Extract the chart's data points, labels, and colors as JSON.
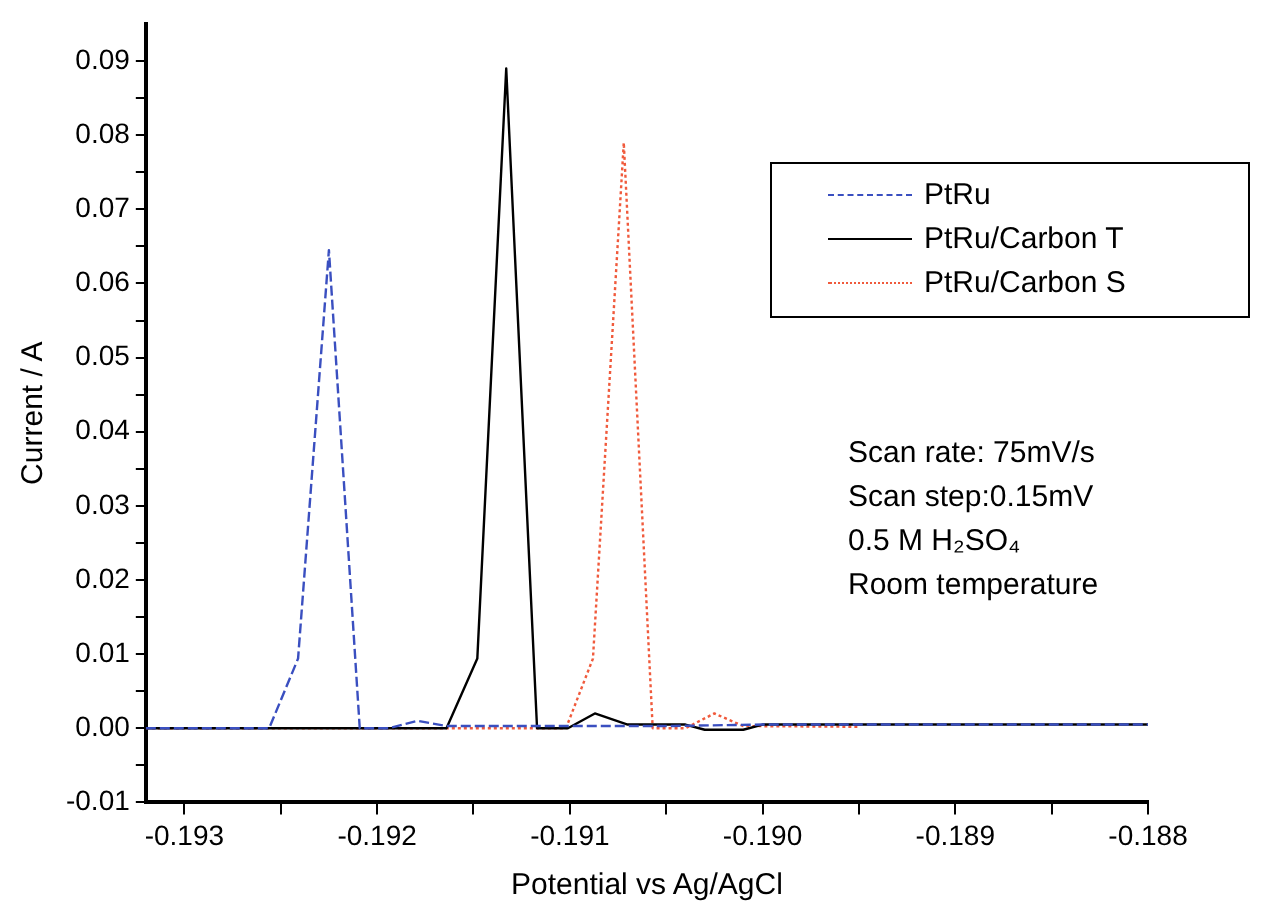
{
  "chart_data": {
    "type": "line",
    "xlabel": "Potential vs Ag/AgCl",
    "ylabel": "Current / A",
    "xlim": [
      -0.1932,
      -0.188
    ],
    "ylim": [
      -0.01,
      0.095
    ],
    "xticks": [
      {
        "value": -0.193,
        "label": "-0.193"
      },
      {
        "value": -0.1925,
        "label": null
      },
      {
        "value": -0.192,
        "label": "-0.192"
      },
      {
        "value": -0.1915,
        "label": null
      },
      {
        "value": -0.191,
        "label": "-0.191"
      },
      {
        "value": -0.1905,
        "label": null
      },
      {
        "value": -0.19,
        "label": "-0.190"
      },
      {
        "value": -0.1895,
        "label": null
      },
      {
        "value": -0.189,
        "label": "-0.189"
      },
      {
        "value": -0.1885,
        "label": null
      },
      {
        "value": -0.188,
        "label": "-0.188"
      }
    ],
    "yticks": [
      {
        "value": -0.01,
        "label": "-0.01"
      },
      {
        "value": -0.005,
        "label": null
      },
      {
        "value": 0,
        "label": "0.00"
      },
      {
        "value": 0.005,
        "label": null
      },
      {
        "value": 0.01,
        "label": "0.01"
      },
      {
        "value": 0.015,
        "label": null
      },
      {
        "value": 0.02,
        "label": "0.02"
      },
      {
        "value": 0.025,
        "label": null
      },
      {
        "value": 0.03,
        "label": "0.03"
      },
      {
        "value": 0.035,
        "label": null
      },
      {
        "value": 0.04,
        "label": "0.04"
      },
      {
        "value": 0.045,
        "label": null
      },
      {
        "value": 0.05,
        "label": "0.05"
      },
      {
        "value": 0.055,
        "label": null
      },
      {
        "value": 0.06,
        "label": "0.06"
      },
      {
        "value": 0.065,
        "label": null
      },
      {
        "value": 0.07,
        "label": "0.07"
      },
      {
        "value": 0.075,
        "label": null
      },
      {
        "value": 0.08,
        "label": "0.08"
      },
      {
        "value": 0.085,
        "label": null
      },
      {
        "value": 0.09,
        "label": "0.09"
      }
    ],
    "grid": false,
    "legend": "top right",
    "marker": "none",
    "series": [
      {
        "name": "PtRu",
        "color": "#3a4fc0",
        "line_style": "dashed",
        "x": [
          -0.1932,
          -0.19256,
          -0.19241,
          -0.19225,
          -0.19209,
          -0.19194,
          -0.19179,
          -0.19164,
          -0.1905,
          -0.19,
          -0.189,
          -0.188
        ],
        "values": [
          0,
          0,
          0.0094,
          0.0645,
          0,
          0,
          0.001,
          0.0003,
          0.0003,
          0.0005,
          0.0005,
          0.0005
        ]
      },
      {
        "name": "PtRu/Carbon T",
        "color": "#000000",
        "line_style": "solid",
        "x": [
          -0.1932,
          -0.19164,
          -0.19148,
          -0.19133,
          -0.19117,
          -0.19101,
          -0.19087,
          -0.1907,
          -0.1904,
          -0.1903,
          -0.1901,
          -0.19,
          -0.189,
          -0.188
        ],
        "values": [
          0,
          0,
          0.0094,
          0.089,
          0,
          0,
          0.002,
          0.0005,
          0.0005,
          -0.0002,
          -0.0002,
          0.0005,
          0.0005,
          0.0005
        ]
      },
      {
        "name": "PtRu/Carbon S",
        "color": "#f05a3c",
        "line_style": "dotted",
        "x": [
          -0.1932,
          -0.19102,
          -0.19088,
          -0.19072,
          -0.19057,
          -0.1904,
          -0.19025,
          -0.1901,
          -0.1895
        ],
        "values": [
          0,
          0,
          0.0094,
          0.079,
          0,
          0,
          0.002,
          0.0003,
          0.0002
        ]
      }
    ],
    "annotations": [
      "Scan rate: 75mV/s",
      "Scan step:0.15mV",
      "0.5 M H₂SO₄",
      "Room temperature"
    ]
  }
}
